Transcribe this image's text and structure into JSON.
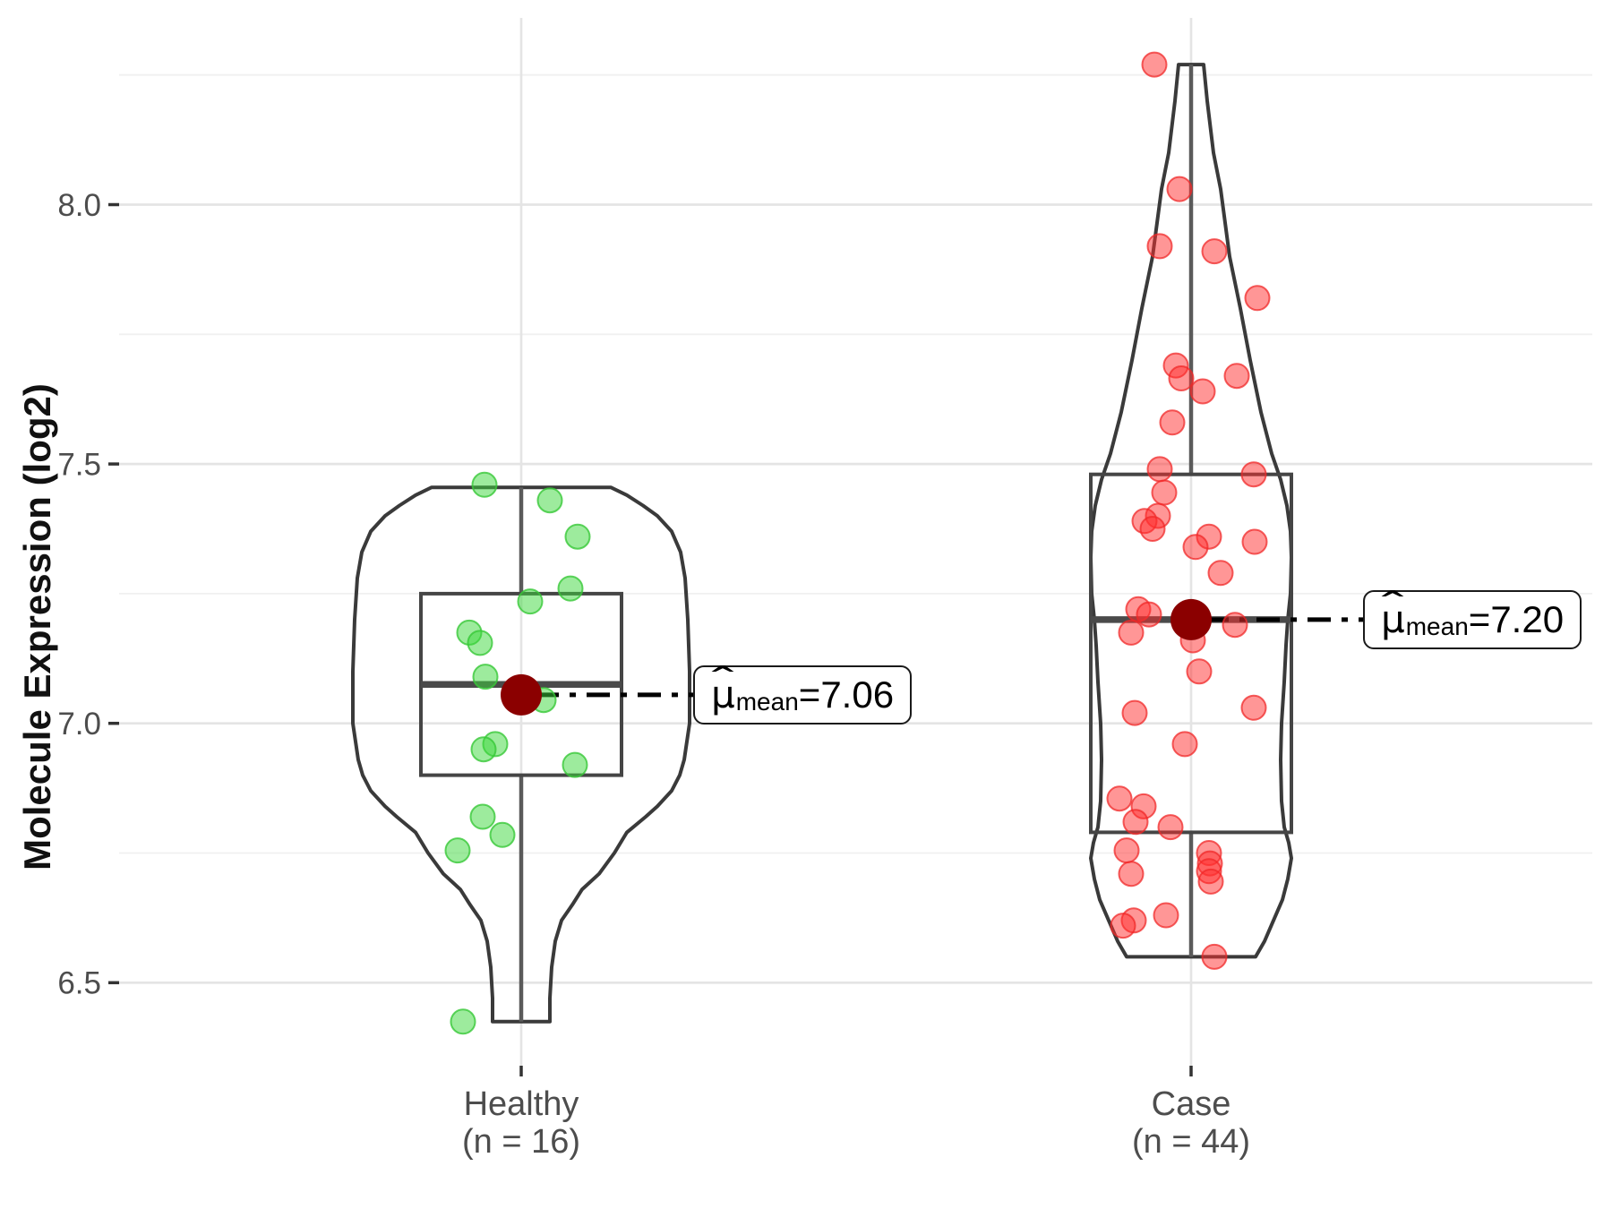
{
  "y_axis": {
    "title": "Molecule Expression (log2)",
    "range": [
      6.34,
      8.36
    ],
    "ticks": [
      {
        "value": 8.0,
        "label": "8.0"
      },
      {
        "value": 7.5,
        "label": "7.5"
      },
      {
        "value": 7.0,
        "label": "7.0"
      },
      {
        "value": 6.5,
        "label": "6.5"
      }
    ],
    "minor_ticks": [
      8.25,
      7.75,
      7.25,
      6.75
    ]
  },
  "annotation": {
    "mu": "μ",
    "hat": "^",
    "sub": "mean",
    "eq": " = "
  },
  "style": {
    "background": "#ffffff",
    "grid_major": "#e4e4e4",
    "grid_minor": "#f0f0f0",
    "axis_text": "#4d4d4d",
    "tick_mark": "#333333",
    "violin_stroke": "#3a3a3a",
    "box_stroke": "#454545",
    "whisker_stroke": "#5a5a5a",
    "median_stroke": "#4a4a4a",
    "mean_fill": "#8b0000",
    "dash_line": "#000000"
  },
  "chart_data": {
    "type": "violin+boxplot+jitter",
    "ylabel": "Molecule Expression (log2)",
    "ylim": [
      6.34,
      8.36
    ],
    "grid": true,
    "groups": [
      {
        "name": "Healthy",
        "n": 16,
        "label_line1": "Healthy",
        "label_line2": "(n = 16)",
        "mean": 7.055,
        "mean_text": "7.06",
        "median": 7.075,
        "q1": 6.9,
        "q3": 7.25,
        "whisker_low": 6.425,
        "whisker_high": 7.455,
        "point_fill": "rgba(60,215,60,0.5)",
        "point_stroke": "rgba(55,200,55,0.8)",
        "violin": [
          [
            7.455,
            100
          ],
          [
            7.44,
            118
          ],
          [
            7.42,
            136
          ],
          [
            7.4,
            152
          ],
          [
            7.37,
            168
          ],
          [
            7.33,
            178
          ],
          [
            7.28,
            183
          ],
          [
            7.2,
            186
          ],
          [
            7.1,
            188
          ],
          [
            7.0,
            188
          ],
          [
            6.93,
            182
          ],
          [
            6.9,
            177
          ],
          [
            6.87,
            168
          ],
          [
            6.84,
            152
          ],
          [
            6.82,
            139
          ],
          [
            6.79,
            118
          ],
          [
            6.75,
            104
          ],
          [
            6.71,
            87
          ],
          [
            6.68,
            68
          ],
          [
            6.65,
            57
          ],
          [
            6.62,
            45
          ],
          [
            6.58,
            38
          ],
          [
            6.53,
            34
          ],
          [
            6.47,
            32
          ],
          [
            6.425,
            32
          ]
        ],
        "points": [
          [
            7.46,
            -41
          ],
          [
            7.43,
            32
          ],
          [
            7.36,
            63
          ],
          [
            7.26,
            55
          ],
          [
            7.235,
            10
          ],
          [
            7.175,
            -58
          ],
          [
            7.155,
            -46
          ],
          [
            7.09,
            -40
          ],
          [
            7.045,
            25
          ],
          [
            6.96,
            -29
          ],
          [
            6.95,
            -42
          ],
          [
            6.92,
            60
          ],
          [
            6.82,
            -43
          ],
          [
            6.785,
            -21
          ],
          [
            6.755,
            -71
          ],
          [
            6.425,
            -65
          ]
        ]
      },
      {
        "name": "Case",
        "n": 44,
        "label_line1": "Case",
        "label_line2": "(n = 44)",
        "mean": 7.2,
        "mean_text": "7.20",
        "median": 7.2,
        "q1": 6.79,
        "q3": 7.48,
        "whisker_low": 6.55,
        "whisker_high": 8.27,
        "point_fill": "rgba(255,45,45,0.5)",
        "point_stroke": "rgba(240,40,40,0.75)",
        "violin": [
          [
            8.27,
            14
          ],
          [
            8.2,
            18
          ],
          [
            8.1,
            25
          ],
          [
            8.03,
            33
          ],
          [
            7.9,
            43
          ],
          [
            7.8,
            55
          ],
          [
            7.7,
            66
          ],
          [
            7.6,
            78
          ],
          [
            7.52,
            90
          ],
          [
            7.47,
            100
          ],
          [
            7.42,
            107
          ],
          [
            7.37,
            111
          ],
          [
            7.32,
            112
          ],
          [
            7.25,
            111
          ],
          [
            7.2,
            108
          ],
          [
            7.15,
            106
          ],
          [
            7.08,
            104
          ],
          [
            7.0,
            101
          ],
          [
            6.93,
            100
          ],
          [
            6.85,
            101
          ],
          [
            6.8,
            104
          ],
          [
            6.77,
            109
          ],
          [
            6.74,
            112
          ],
          [
            6.7,
            108
          ],
          [
            6.66,
            102
          ],
          [
            6.62,
            92
          ],
          [
            6.58,
            82
          ],
          [
            6.55,
            72
          ]
        ],
        "points": [
          [
            8.27,
            -41
          ],
          [
            8.03,
            -13
          ],
          [
            7.92,
            -35
          ],
          [
            7.91,
            26
          ],
          [
            7.82,
            74
          ],
          [
            7.69,
            -17
          ],
          [
            7.665,
            -11
          ],
          [
            7.67,
            51
          ],
          [
            7.64,
            13
          ],
          [
            7.58,
            -21
          ],
          [
            7.49,
            -35
          ],
          [
            7.48,
            70
          ],
          [
            7.445,
            -30
          ],
          [
            7.4,
            -37
          ],
          [
            7.39,
            -52
          ],
          [
            7.375,
            -43
          ],
          [
            7.36,
            20
          ],
          [
            7.35,
            71
          ],
          [
            7.34,
            5
          ],
          [
            7.29,
            33
          ],
          [
            7.22,
            -59
          ],
          [
            7.21,
            -47
          ],
          [
            7.2,
            0
          ],
          [
            7.19,
            49
          ],
          [
            7.175,
            -67
          ],
          [
            7.16,
            2
          ],
          [
            7.1,
            9
          ],
          [
            7.03,
            70
          ],
          [
            7.02,
            -63
          ],
          [
            6.96,
            -7
          ],
          [
            6.855,
            -80
          ],
          [
            6.84,
            -53
          ],
          [
            6.81,
            -62
          ],
          [
            6.8,
            -23
          ],
          [
            6.755,
            -72
          ],
          [
            6.75,
            20
          ],
          [
            6.73,
            21
          ],
          [
            6.715,
            20
          ],
          [
            6.695,
            22
          ],
          [
            6.71,
            -67
          ],
          [
            6.63,
            -28
          ],
          [
            6.62,
            -64
          ],
          [
            6.61,
            -76
          ],
          [
            6.55,
            26
          ]
        ]
      }
    ]
  }
}
